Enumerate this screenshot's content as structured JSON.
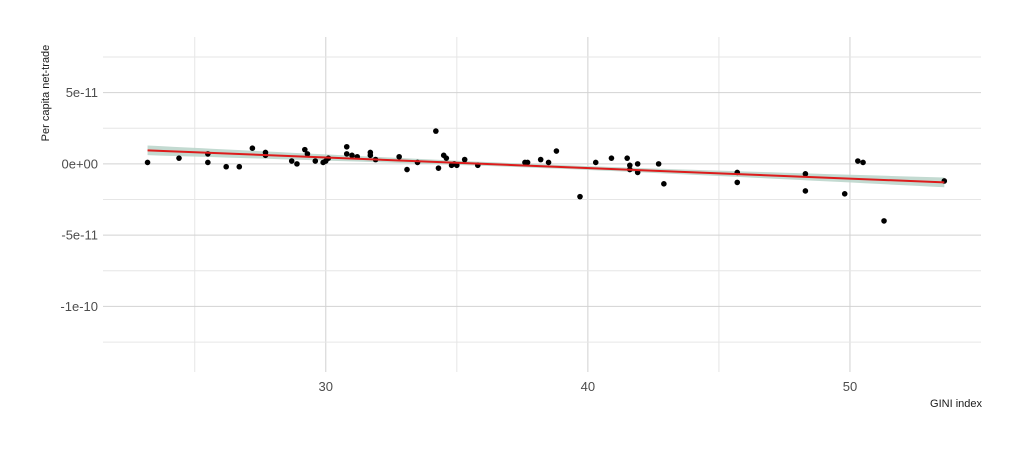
{
  "chart_data": {
    "type": "scatter",
    "xlabel": "GINI index",
    "ylabel": "Per capita net-trade",
    "xlim": [
      21.5,
      55.0
    ],
    "ylim": [
      -1.46e-10,
      8.9e-11
    ],
    "x_ticks": [
      30,
      40,
      50
    ],
    "x_tick_labels": [
      "30",
      "40",
      "50"
    ],
    "y_ticks": [
      5e-11,
      0,
      -5e-11,
      -1e-10
    ],
    "y_tick_labels": [
      "5e-11",
      "0e+00",
      "-5e-11",
      "-1e-10"
    ],
    "grid": true,
    "colors": {
      "points": "#000000",
      "fit_line": "#dd1c1c",
      "confidence_band": "#b9d3c9"
    },
    "series": [
      {
        "points": [
          [
            23.2,
            1e-12
          ],
          [
            24.4,
            4e-12
          ],
          [
            25.5,
            1e-12
          ],
          [
            25.5,
            7e-12
          ],
          [
            26.2,
            -2e-12
          ],
          [
            26.7,
            -2e-12
          ],
          [
            27.2,
            1.1e-11
          ],
          [
            27.7,
            8e-12
          ],
          [
            27.7,
            6e-12
          ],
          [
            28.7,
            2e-12
          ],
          [
            28.9,
            0.0
          ],
          [
            29.2,
            1e-11
          ],
          [
            29.3,
            7e-12
          ],
          [
            29.6,
            2e-12
          ],
          [
            29.9,
            1e-12
          ],
          [
            30.0,
            2e-12
          ],
          [
            30.1,
            4e-12
          ],
          [
            30.8,
            1.2e-11
          ],
          [
            30.8,
            7e-12
          ],
          [
            31.0,
            6e-12
          ],
          [
            31.2,
            5e-12
          ],
          [
            31.7,
            6e-12
          ],
          [
            31.7,
            8e-12
          ],
          [
            31.9,
            3e-12
          ],
          [
            32.8,
            5e-12
          ],
          [
            33.1,
            -4e-12
          ],
          [
            33.5,
            1e-12
          ],
          [
            34.2,
            2.3e-11
          ],
          [
            34.3,
            -3e-12
          ],
          [
            34.5,
            6e-12
          ],
          [
            34.6,
            4e-12
          ],
          [
            34.8,
            -1e-12
          ],
          [
            34.9,
            0.0
          ],
          [
            35.0,
            -1e-12
          ],
          [
            35.3,
            3e-12
          ],
          [
            35.8,
            -1e-12
          ],
          [
            37.6,
            1e-12
          ],
          [
            37.7,
            1e-12
          ],
          [
            38.2,
            3e-12
          ],
          [
            38.5,
            1e-12
          ],
          [
            38.8,
            9e-12
          ],
          [
            39.7,
            -2.3e-11
          ],
          [
            40.3,
            1e-12
          ],
          [
            40.9,
            4e-12
          ],
          [
            41.5,
            4e-12
          ],
          [
            41.6,
            -1e-12
          ],
          [
            41.6,
            -4e-12
          ],
          [
            41.9,
            -6e-12
          ],
          [
            41.9,
            0.0
          ],
          [
            42.7,
            0.0
          ],
          [
            42.9,
            -1.4e-11
          ],
          [
            45.7,
            -6e-12
          ],
          [
            45.7,
            -1.3e-11
          ],
          [
            48.3,
            -7e-12
          ],
          [
            48.3,
            -1.9e-11
          ],
          [
            49.8,
            -2.1e-11
          ],
          [
            50.3,
            2e-12
          ],
          [
            50.5,
            1e-12
          ],
          [
            51.3,
            -4e-11
          ],
          [
            53.6,
            -1.2e-11
          ]
        ]
      }
    ],
    "fit": {
      "method": "linear",
      "x_range": [
        23.2,
        53.6
      ],
      "y_at_range": [
        9.5e-12,
        -1.3e-11
      ],
      "band_halfwidth_at_ends": [
        3e-12,
        3.8e-12
      ],
      "band_halfwidth_at_center": 1.3e-12
    }
  }
}
